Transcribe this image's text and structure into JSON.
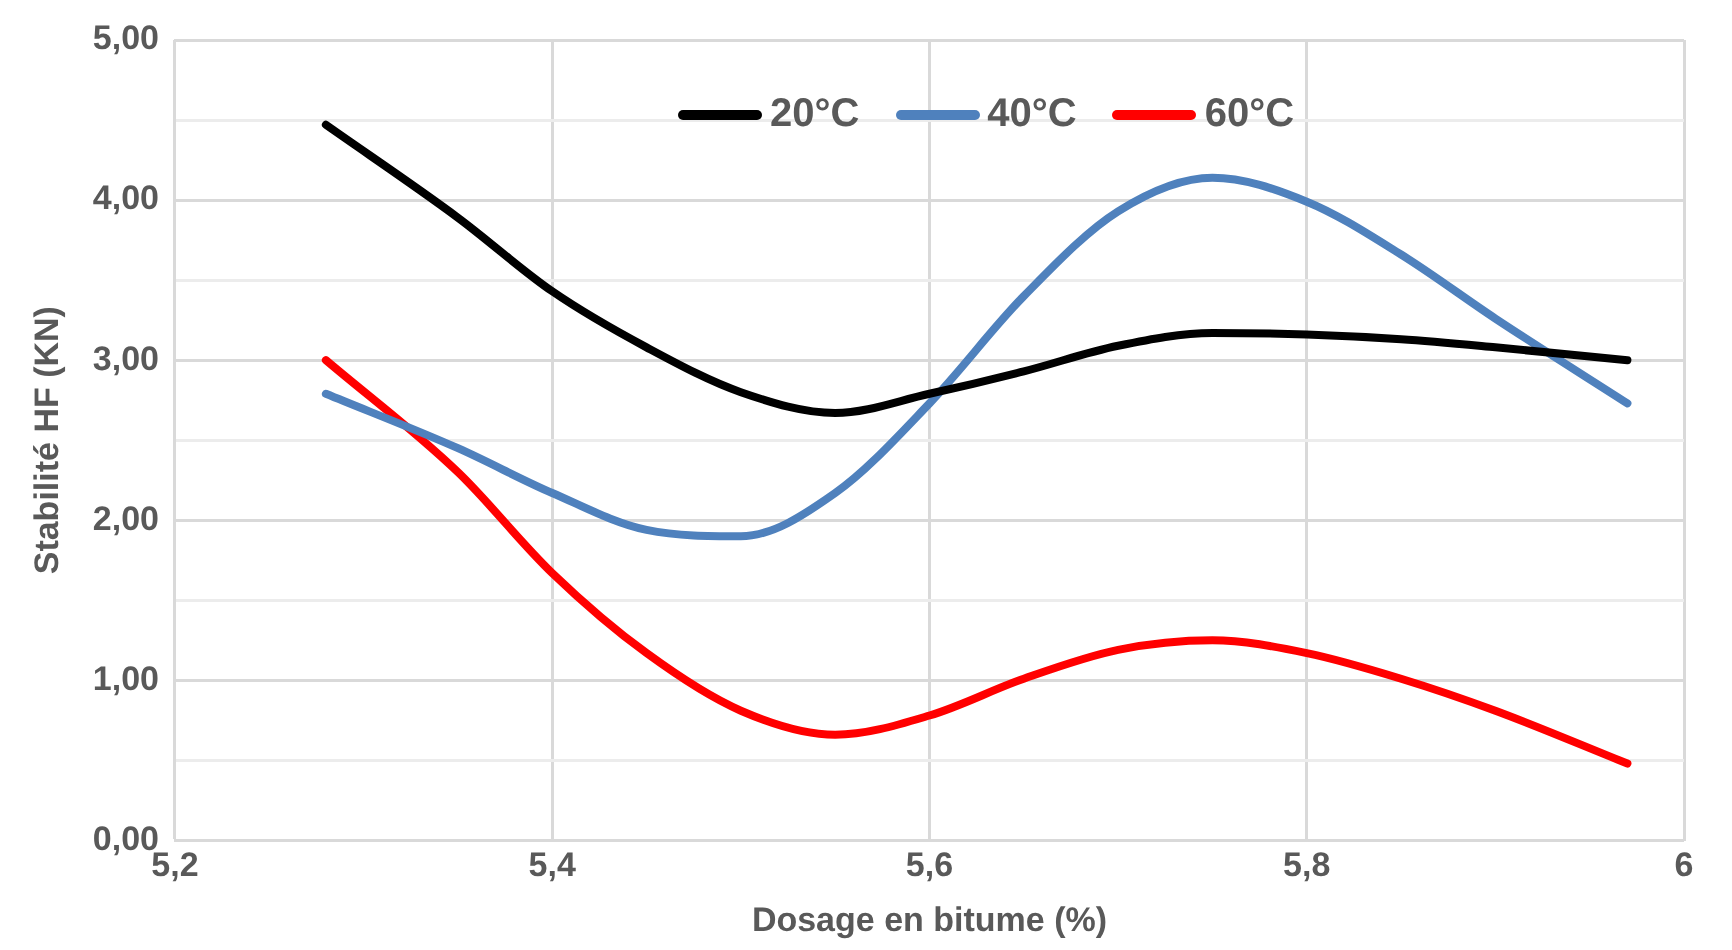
{
  "chart_data": {
    "type": "line",
    "xlabel": "Dosage en bitume (%)",
    "ylabel": "Stabilité HF (KN)",
    "xlim": [
      5.2,
      6
    ],
    "xticks": [
      {
        "value": 5.2,
        "label": "5,2"
      },
      {
        "value": 5.4,
        "label": "5,4"
      },
      {
        "value": 5.6,
        "label": "5,6"
      },
      {
        "value": 5.8,
        "label": "5,8"
      },
      6
    ],
    "ylim": [
      0,
      5
    ],
    "yticks": [
      {
        "value": 0,
        "label": "0,00"
      },
      {
        "value": 0.5,
        "label": null
      },
      {
        "value": 1,
        "label": "1,00"
      },
      {
        "value": 1.5,
        "label": null
      },
      {
        "value": 2,
        "label": "2,00"
      },
      {
        "value": 2.5,
        "label": null
      },
      {
        "value": 3,
        "label": "3,00"
      },
      {
        "value": 3.5,
        "label": null
      },
      {
        "value": 4,
        "label": "4,00"
      },
      {
        "value": 4.5,
        "label": null
      },
      {
        "value": 5,
        "label": "5,00"
      }
    ],
    "grid": true,
    "legend": "top",
    "marker": "none",
    "line_style": "solid",
    "x": [
      5.28,
      5.35,
      5.4,
      5.45,
      5.5,
      5.55,
      5.6,
      5.65,
      5.7,
      5.75,
      5.8,
      5.85,
      5.9,
      5.97
    ],
    "series": [
      {
        "name": "20°C",
        "color": "#000000",
        "values": [
          4.47,
          3.89,
          3.43,
          3.08,
          2.8,
          2.67,
          2.79,
          2.93,
          3.09,
          3.17,
          3.16,
          3.13,
          3.08,
          3.0
        ]
      },
      {
        "name": "40°C",
        "color": "#4f81bd",
        "values": [
          2.79,
          2.45,
          2.17,
          1.94,
          1.9,
          2.17,
          2.73,
          3.4,
          3.93,
          4.14,
          3.99,
          3.66,
          3.26,
          2.73
        ]
      },
      {
        "name": "60°C",
        "color": "#ff0000",
        "values": [
          3.0,
          2.3,
          1.67,
          1.17,
          0.81,
          0.66,
          0.78,
          1.01,
          1.19,
          1.25,
          1.17,
          1.01,
          0.81,
          0.48
        ]
      }
    ]
  }
}
